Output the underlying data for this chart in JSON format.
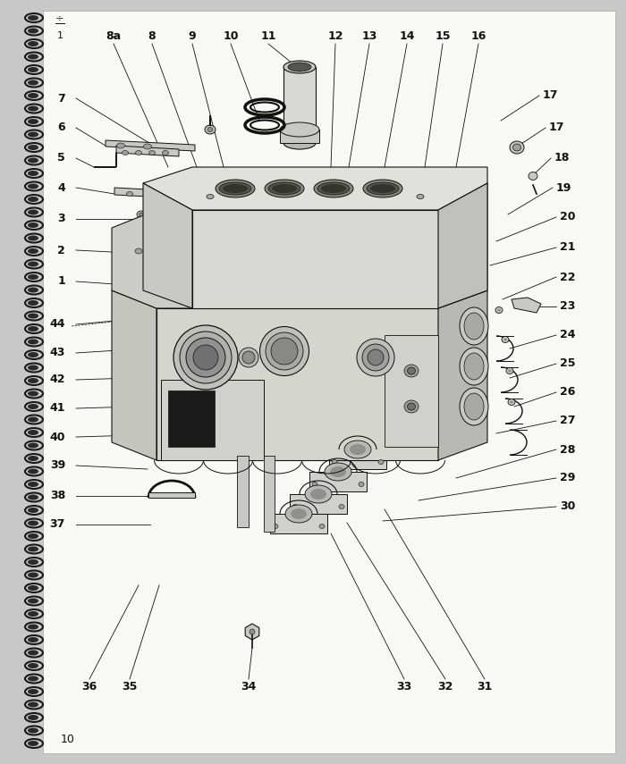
{
  "page_number": "10",
  "background_color": "#c8c8c8",
  "page_color": "#f8f8f4",
  "spiral_color": "#1a1a1a",
  "line_color": "#111111",
  "text_color": "#111111",
  "figsize": [
    7.0,
    8.55
  ],
  "dpi": 100,
  "top_labels": [
    [
      "8a",
      127,
      800
    ],
    [
      "8",
      170,
      800
    ],
    [
      "9",
      215,
      800
    ],
    [
      "10",
      260,
      800
    ],
    [
      "11",
      300,
      800
    ],
    [
      "12",
      380,
      800
    ],
    [
      "13",
      415,
      800
    ],
    [
      "14",
      455,
      800
    ],
    [
      "15",
      495,
      800
    ],
    [
      "16",
      535,
      800
    ]
  ],
  "left_labels": [
    [
      "7",
      75,
      745
    ],
    [
      "6",
      75,
      710
    ],
    [
      "5",
      75,
      675
    ],
    [
      "4",
      75,
      640
    ],
    [
      "3",
      75,
      600
    ],
    [
      "2",
      75,
      565
    ],
    [
      "1",
      75,
      530
    ],
    [
      "44",
      75,
      490
    ],
    [
      "43",
      75,
      455
    ],
    [
      "42",
      75,
      420
    ],
    [
      "41",
      75,
      390
    ],
    [
      "40",
      75,
      360
    ],
    [
      "39",
      75,
      330
    ],
    [
      "38",
      75,
      295
    ],
    [
      "37",
      75,
      260
    ]
  ],
  "bottom_labels": [
    [
      "36",
      100,
      95
    ],
    [
      "35",
      145,
      95
    ],
    [
      "34",
      275,
      95
    ],
    [
      "33",
      450,
      95
    ],
    [
      "32",
      495,
      95
    ],
    [
      "31",
      540,
      95
    ]
  ],
  "right_labels": [
    [
      "17",
      600,
      745
    ],
    [
      "17",
      610,
      710
    ],
    [
      "18",
      615,
      675
    ],
    [
      "19",
      620,
      643
    ],
    [
      "20",
      625,
      610
    ],
    [
      "21",
      625,
      577
    ],
    [
      "22",
      625,
      545
    ],
    [
      "23",
      625,
      513
    ],
    [
      "24",
      625,
      480
    ],
    [
      "25",
      625,
      448
    ],
    [
      "26",
      625,
      416
    ],
    [
      "27",
      625,
      384
    ],
    [
      "28",
      625,
      352
    ],
    [
      "29",
      625,
      320
    ],
    [
      "30",
      625,
      288
    ]
  ]
}
